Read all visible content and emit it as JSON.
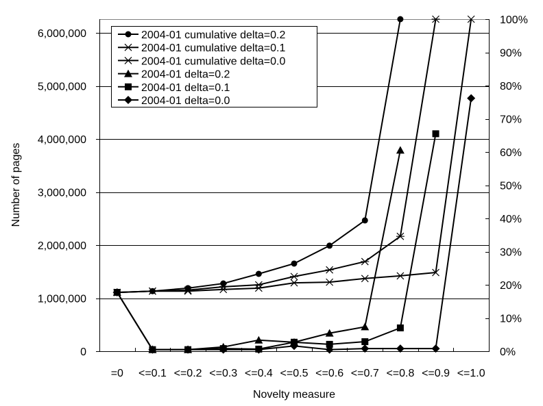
{
  "chart_data": {
    "type": "line",
    "title": "",
    "xlabel": "Novelty measure",
    "ylabel": "Number of pages",
    "y2label": "",
    "categories": [
      "=0",
      "<=0.1",
      "<=0.2",
      "<=0.3",
      "<=0.4",
      "<=0.5",
      "<=0.6",
      "<=0.7",
      "<=0.8",
      "<=0.9",
      "<=1.0"
    ],
    "ylim": [
      0,
      6260000
    ],
    "y2lim": [
      0,
      100
    ],
    "yticks": [
      0,
      1000000,
      2000000,
      3000000,
      4000000,
      5000000,
      6000000
    ],
    "ytick_labels": [
      "0",
      "1,000,000",
      "2,000,000",
      "3,000,000",
      "4,000,000",
      "5,000,000",
      "6,000,000"
    ],
    "y2ticks": [
      0,
      10,
      20,
      30,
      40,
      50,
      60,
      70,
      80,
      90,
      100
    ],
    "y2tick_labels": [
      "0%",
      "10%",
      "20%",
      "30%",
      "40%",
      "50%",
      "60%",
      "70%",
      "80%",
      "90%",
      "100%"
    ],
    "grid": "horizontal major gridlines on primary axis",
    "legend_position": "upper-left inside plot",
    "series": [
      {
        "name": "2004-01 cumulative delta=0.2",
        "axis": "secondary",
        "marker": "circle",
        "values": [
          17.7,
          18.1,
          19.0,
          20.4,
          23.3,
          26.4,
          31.8,
          39.4,
          100,
          null,
          null
        ]
      },
      {
        "name": "2004-01 cumulative delta=0.1",
        "axis": "secondary",
        "marker": "star",
        "values": [
          17.7,
          18.1,
          18.4,
          19.4,
          20.0,
          22.5,
          24.5,
          27.0,
          34.6,
          100,
          null
        ]
      },
      {
        "name": "2004-01 cumulative delta=0.0",
        "axis": "secondary",
        "marker": "x",
        "values": [
          17.7,
          18.1,
          18.1,
          18.6,
          19.0,
          20.6,
          20.8,
          21.9,
          22.7,
          23.7,
          100
        ]
      },
      {
        "name": "2004-01 delta=0.2",
        "axis": "primary",
        "marker": "triangle",
        "values": [
          1110000,
          30000,
          30000,
          80000,
          210000,
          170000,
          340000,
          460000,
          3790000,
          null,
          null
        ]
      },
      {
        "name": "2004-01 delta=0.1",
        "axis": "primary",
        "marker": "square",
        "values": [
          1110000,
          30000,
          30000,
          50000,
          40000,
          170000,
          130000,
          180000,
          440000,
          4100000,
          null
        ]
      },
      {
        "name": "2004-01 delta=0.0",
        "axis": "primary",
        "marker": "diamond",
        "values": [
          1110000,
          30000,
          30000,
          30000,
          30000,
          100000,
          30000,
          50000,
          50000,
          50000,
          4770000
        ]
      }
    ]
  },
  "colors": {
    "line": "#000000",
    "grid": "#000000",
    "plot_border_top": "#808080",
    "background": "#ffffff"
  }
}
